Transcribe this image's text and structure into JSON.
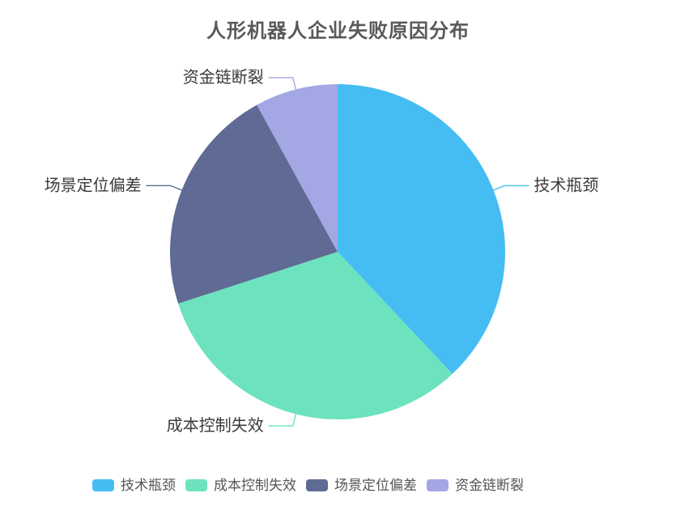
{
  "title": {
    "text": "人形机器人企业失败原因分布"
  },
  "chart_data": {
    "type": "pie",
    "title": "人形机器人企业失败原因分布",
    "categories": [
      "技术瓶颈",
      "成本控制失效",
      "场景定位偏差",
      "资金链断裂"
    ],
    "values": [
      38,
      32,
      22,
      8
    ],
    "colors": [
      "#45BDF2",
      "#6DE2BE",
      "#5F6B94",
      "#A3A7E3"
    ],
    "start_angle": "top",
    "direction": "clockwise",
    "labels": {
      "position": "outside",
      "leader_lines": true
    },
    "legend": {
      "position": "bottom",
      "entries": [
        "技术瓶颈",
        "成本控制失效",
        "场景定位偏差",
        "资金链断裂"
      ]
    }
  },
  "style_colors": {
    "background": "#ffffff",
    "title_text": "#595959",
    "slice_label_text": "#3a3a3a",
    "legend_text": "#555555"
  }
}
